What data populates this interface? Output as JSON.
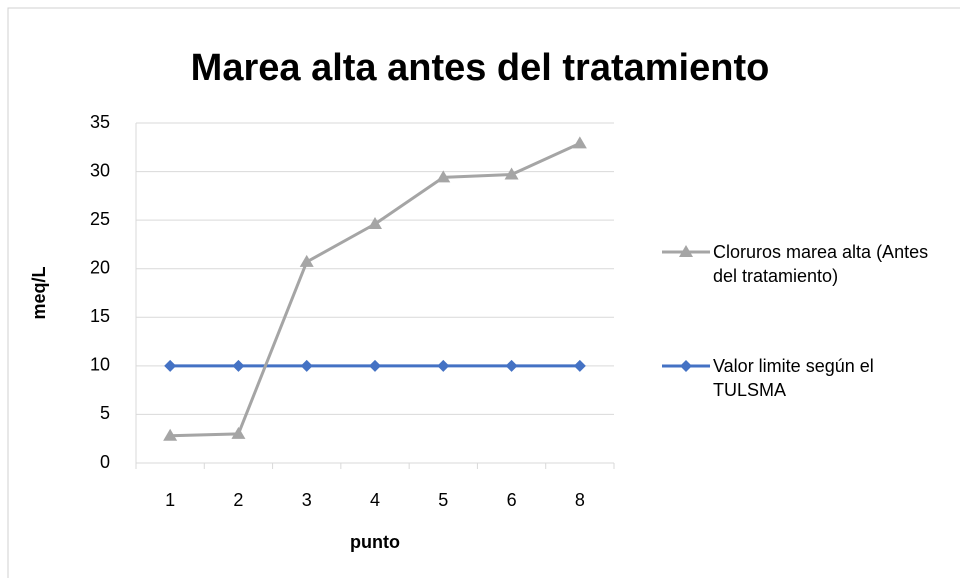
{
  "chart_data": {
    "type": "line",
    "title": "Marea alta antes del tratamiento",
    "x_label": "punto",
    "y_label": "meq/L",
    "categories": [
      "1",
      "2",
      "3",
      "4",
      "5",
      "6",
      "8"
    ],
    "series": [
      {
        "name": "Cloruros marea alta (Antes del tratamiento)",
        "color": "#a5a5a5",
        "marker": "triangle",
        "values": [
          2.8,
          3.0,
          20.7,
          24.6,
          29.4,
          29.7,
          32.9
        ]
      },
      {
        "name": "Valor limite según el TULSMA",
        "color": "#4472c4",
        "marker": "diamond",
        "values": [
          10,
          10,
          10,
          10,
          10,
          10,
          10
        ]
      }
    ],
    "ylim": [
      0,
      35
    ],
    "yticks": [
      0,
      5,
      10,
      15,
      20,
      25,
      30,
      35
    ],
    "grid": true,
    "legend": "right"
  }
}
